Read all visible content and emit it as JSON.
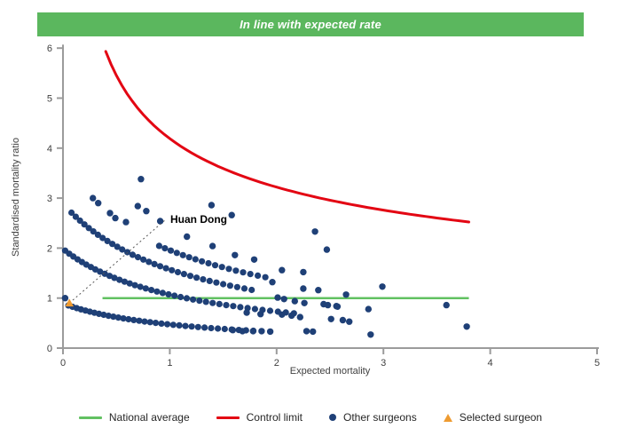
{
  "banner": {
    "label": "In line with expected rate"
  },
  "colors": {
    "banner_bg": "#5bb75e",
    "national_average": "#62c162",
    "control_limit": "#e30613",
    "other_surgeons": "#1f4077",
    "selected_surgeon": "#ee9b31",
    "axis": "#9b9b9b",
    "text": "#404040",
    "leader_line": "#555555"
  },
  "legend": {
    "items": [
      {
        "label": "National average",
        "swatch": "green-line"
      },
      {
        "label": "Control limit",
        "swatch": "red-line"
      },
      {
        "label": "Other surgeons",
        "swatch": "navy-dot"
      },
      {
        "label": "Selected surgeon",
        "swatch": "orange-triangle"
      }
    ]
  },
  "chart_data": {
    "type": "scatter",
    "title": "In line with expected rate",
    "xlabel": "Expected mortality",
    "ylabel": "Standardised mortality ratio",
    "xlim": [
      0,
      5
    ],
    "ylim": [
      0,
      6
    ],
    "x_ticks": [
      0,
      1,
      2,
      3,
      4,
      5
    ],
    "y_ticks": [
      0,
      1,
      2,
      3,
      4,
      5,
      6
    ],
    "grid": false,
    "legend_position": "bottom",
    "national_average": {
      "smr": 1.0,
      "e_start": 0.37,
      "e_end": 3.8
    },
    "control_limit": {
      "k": 4.19,
      "exponent": -0.38,
      "e_start": 0.4,
      "e_end": 3.8
    },
    "surgeon_bands": [
      {
        "name": "band-1",
        "k": 1.01,
        "c": 1.135,
        "e_start": 0.05,
        "e_end": 1.85
      },
      {
        "name": "band-2",
        "k": 2.32,
        "c": 1.17,
        "e_start": 0.02,
        "e_end": 2.2
      },
      {
        "name": "band-3",
        "k": 3.44,
        "c": 1.19,
        "e_start": 0.08,
        "e_end": 1.8
      },
      {
        "name": "band-4",
        "k": 4.6,
        "c": 1.35,
        "e_start": 0.9,
        "e_end": 1.9
      }
    ],
    "other_surgeons": [
      [
        0.02,
        1.0
      ],
      [
        0.28,
        3.0
      ],
      [
        0.33,
        2.9
      ],
      [
        0.44,
        2.7
      ],
      [
        0.49,
        2.6
      ],
      [
        0.59,
        2.52
      ],
      [
        0.7,
        2.84
      ],
      [
        0.78,
        2.74
      ],
      [
        0.91,
        2.54
      ],
      [
        0.73,
        3.38
      ],
      [
        1.16,
        2.23
      ],
      [
        1.39,
        2.86
      ],
      [
        1.58,
        2.66
      ],
      [
        1.4,
        2.04
      ],
      [
        1.61,
        1.86
      ],
      [
        1.79,
        1.77
      ],
      [
        1.96,
        1.32
      ],
      [
        2.05,
        1.56
      ],
      [
        2.25,
        1.52
      ],
      [
        2.36,
        2.33
      ],
      [
        2.47,
        1.97
      ],
      [
        2.25,
        1.19
      ],
      [
        2.39,
        1.16
      ],
      [
        2.65,
        1.07
      ],
      [
        2.99,
        1.23
      ],
      [
        2.01,
        1.01
      ],
      [
        2.07,
        0.98
      ],
      [
        2.17,
        0.94
      ],
      [
        2.26,
        0.9
      ],
      [
        2.44,
        0.88
      ],
      [
        2.48,
        0.86
      ],
      [
        2.56,
        0.84
      ],
      [
        1.72,
        0.71
      ],
      [
        1.85,
        0.68
      ],
      [
        2.05,
        0.67
      ],
      [
        2.14,
        0.65
      ],
      [
        2.22,
        0.62
      ],
      [
        2.51,
        0.58
      ],
      [
        2.62,
        0.56
      ],
      [
        2.68,
        0.53
      ],
      [
        2.57,
        0.83
      ],
      [
        2.86,
        0.78
      ],
      [
        1.59,
        0.36
      ],
      [
        1.68,
        0.34
      ],
      [
        1.78,
        0.34
      ],
      [
        1.86,
        0.34
      ],
      [
        1.94,
        0.33
      ],
      [
        2.28,
        0.34
      ],
      [
        2.34,
        0.33
      ],
      [
        2.88,
        0.27
      ],
      [
        3.59,
        0.86
      ],
      [
        3.78,
        0.43
      ]
    ],
    "selected_surgeon": {
      "label": "Huan Dong",
      "e": 0.06,
      "smr": 0.9
    },
    "annotation": {
      "label": "Huan Dong",
      "leader_from": [
        0.06,
        0.9
      ],
      "leader_to": [
        0.95,
        2.55
      ]
    }
  }
}
